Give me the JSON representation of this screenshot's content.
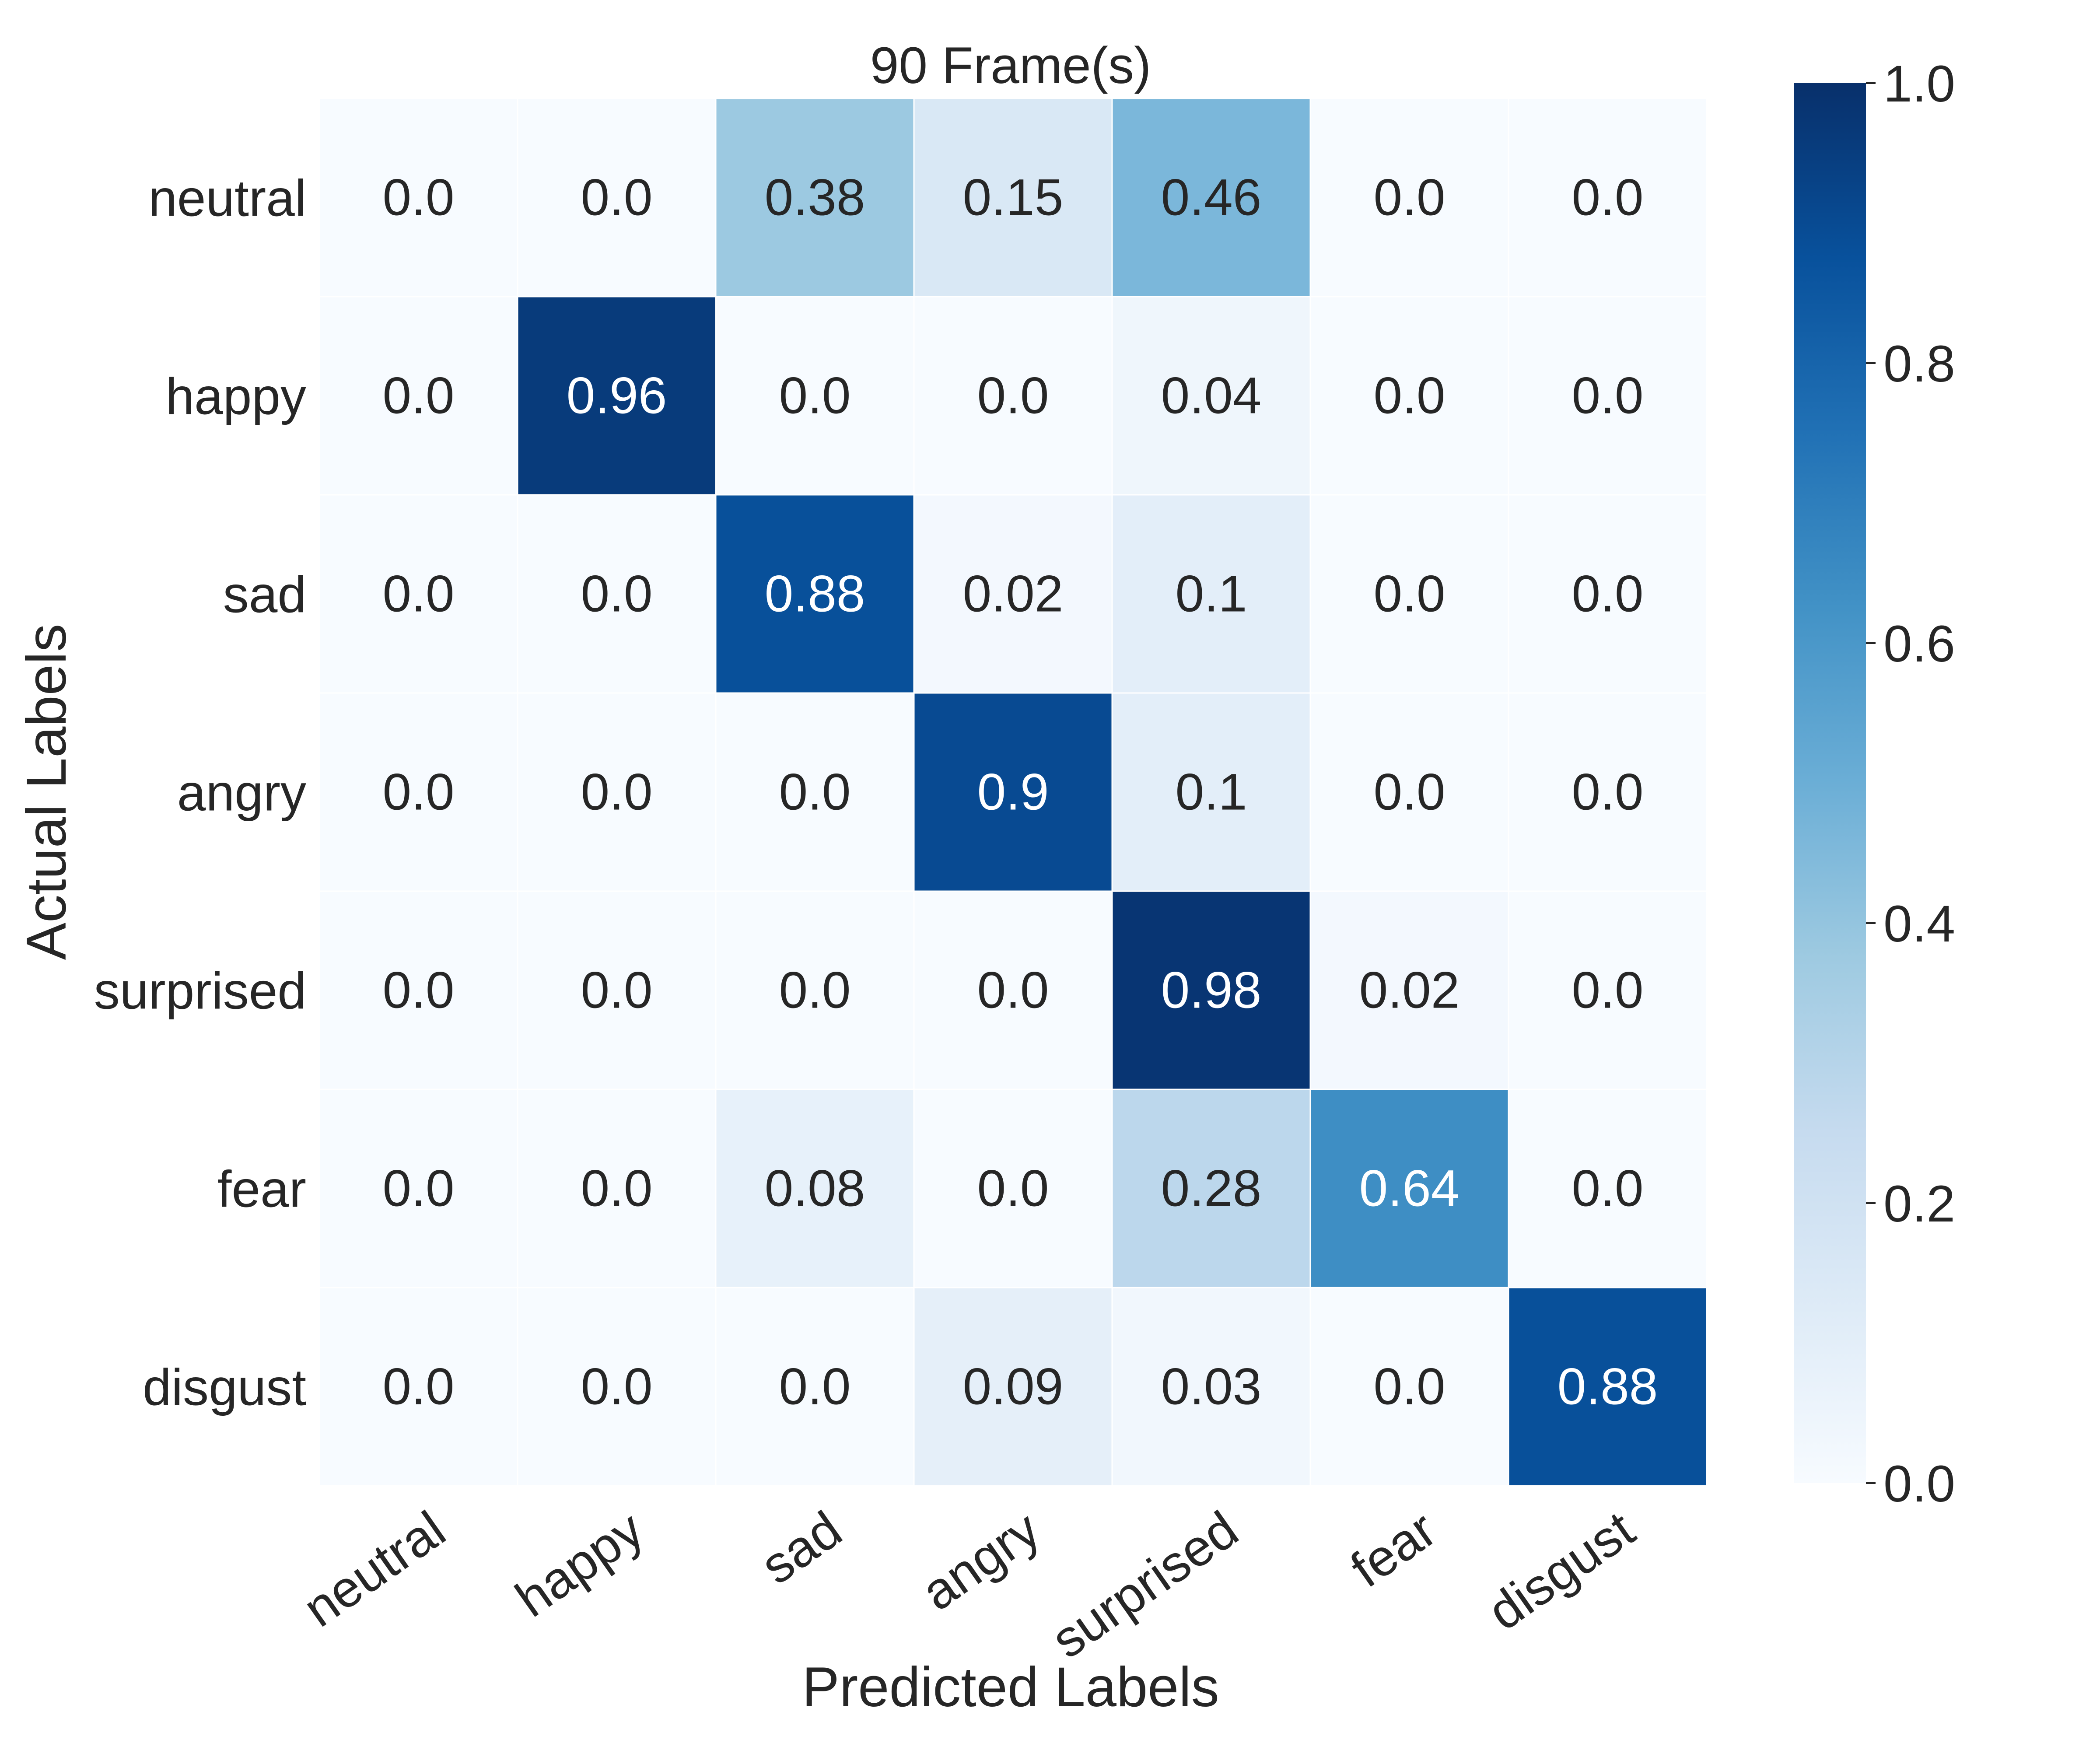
{
  "chart_data": {
    "type": "heatmap",
    "title": "90 Frame(s)",
    "xlabel": "Predicted Labels",
    "ylabel": "Actual Labels",
    "x_categories": [
      "neutral",
      "happy",
      "sad",
      "angry",
      "surprised",
      "fear",
      "disgust"
    ],
    "y_categories": [
      "neutral",
      "happy",
      "sad",
      "angry",
      "surprised",
      "fear",
      "disgust"
    ],
    "values": [
      [
        0.0,
        0.0,
        0.38,
        0.15,
        0.46,
        0.0,
        0.0
      ],
      [
        0.0,
        0.96,
        0.0,
        0.0,
        0.04,
        0.0,
        0.0
      ],
      [
        0.0,
        0.0,
        0.88,
        0.02,
        0.1,
        0.0,
        0.0
      ],
      [
        0.0,
        0.0,
        0.0,
        0.9,
        0.1,
        0.0,
        0.0
      ],
      [
        0.0,
        0.0,
        0.0,
        0.0,
        0.98,
        0.02,
        0.0
      ],
      [
        0.0,
        0.0,
        0.08,
        0.0,
        0.28,
        0.64,
        0.0
      ],
      [
        0.0,
        0.0,
        0.0,
        0.09,
        0.03,
        0.0,
        0.88
      ]
    ],
    "value_labels": [
      [
        "0.0",
        "0.0",
        "0.38",
        "0.15",
        "0.46",
        "0.0",
        "0.0"
      ],
      [
        "0.0",
        "0.96",
        "0.0",
        "0.0",
        "0.04",
        "0.0",
        "0.0"
      ],
      [
        "0.0",
        "0.0",
        "0.88",
        "0.02",
        "0.1",
        "0.0",
        "0.0"
      ],
      [
        "0.0",
        "0.0",
        "0.0",
        "0.9",
        "0.1",
        "0.0",
        "0.0"
      ],
      [
        "0.0",
        "0.0",
        "0.0",
        "0.0",
        "0.98",
        "0.02",
        "0.0"
      ],
      [
        "0.0",
        "0.0",
        "0.08",
        "0.0",
        "0.28",
        "0.64",
        "0.0"
      ],
      [
        "0.0",
        "0.0",
        "0.0",
        "0.09",
        "0.03",
        "0.0",
        "0.88"
      ]
    ],
    "colorbar": {
      "range": [
        0.0,
        1.0
      ],
      "ticks": [
        0.0,
        0.2,
        0.4,
        0.6,
        0.8,
        1.0
      ],
      "tick_labels": [
        "0.0",
        "0.2",
        "0.4",
        "0.6",
        "0.8",
        "1.0"
      ],
      "colormap": "Blues"
    },
    "x_tick_rotation": "rotated ~35°",
    "grid": false,
    "cell_separator_color": "#ffffff"
  },
  "colors": {
    "text_dark": "#262626",
    "text_light": "#ffffff",
    "blues_colormap": [
      "#f7fbff",
      "#deebf7",
      "#c6dbef",
      "#9ecae1",
      "#6baed6",
      "#4292c6",
      "#2171b5",
      "#08519c",
      "#08306b"
    ]
  }
}
